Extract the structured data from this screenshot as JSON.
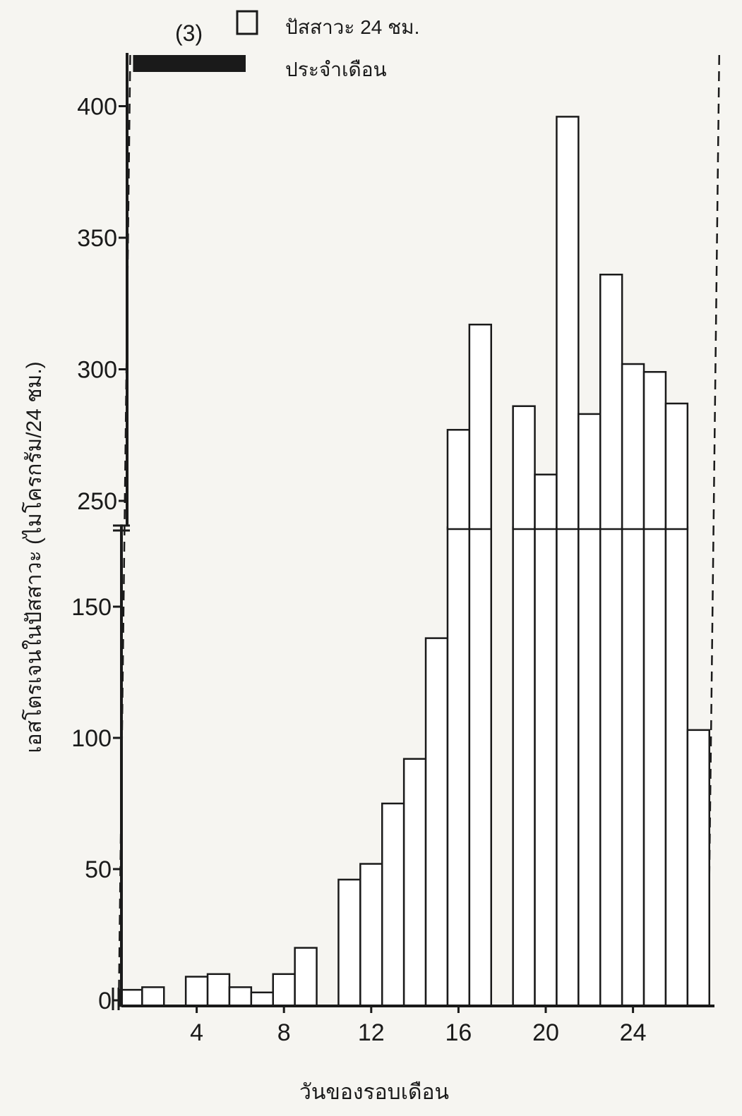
{
  "chart_data": {
    "type": "bar",
    "panel_label": "(3)",
    "legend": [
      {
        "symbol": "open-bar",
        "label": "ปัสสาวะ 24 ชม."
      },
      {
        "symbol": "filled-bar",
        "label": "ประจำเดือน"
      }
    ],
    "xlabel": "วันของรอบเดือน",
    "ylabel": "เอสโตรเจนในปัสสาวะ (ไมโครกรัม/24 ชม.)",
    "x_ticks": [
      4,
      8,
      12,
      16,
      20,
      24
    ],
    "y_ticks_lower": [
      0,
      50,
      100,
      150
    ],
    "y_ticks_upper": [
      250,
      300,
      350,
      400
    ],
    "y_axis_break": {
      "from": 180,
      "to": 240
    },
    "menstruation": {
      "start_day": 0.5,
      "end_day": 5
    },
    "cycle_markers_day": [
      0,
      27
    ],
    "series": [
      {
        "x": [
          1,
          2,
          4,
          5,
          6,
          7,
          8,
          9,
          11,
          12,
          13,
          14,
          15,
          16,
          17,
          19,
          20,
          21,
          22,
          23,
          24,
          25,
          26,
          27
        ],
        "values": [
          4,
          5,
          9,
          10,
          5,
          3,
          10,
          20,
          46,
          52,
          75,
          92,
          138,
          277,
          317,
          286,
          260,
          396,
          283,
          336,
          302,
          299,
          287,
          103
        ]
      }
    ],
    "colors": {
      "bar_fill": "#ffffff",
      "ink": "#1a1a1a",
      "background": "#f6f5f1"
    }
  }
}
